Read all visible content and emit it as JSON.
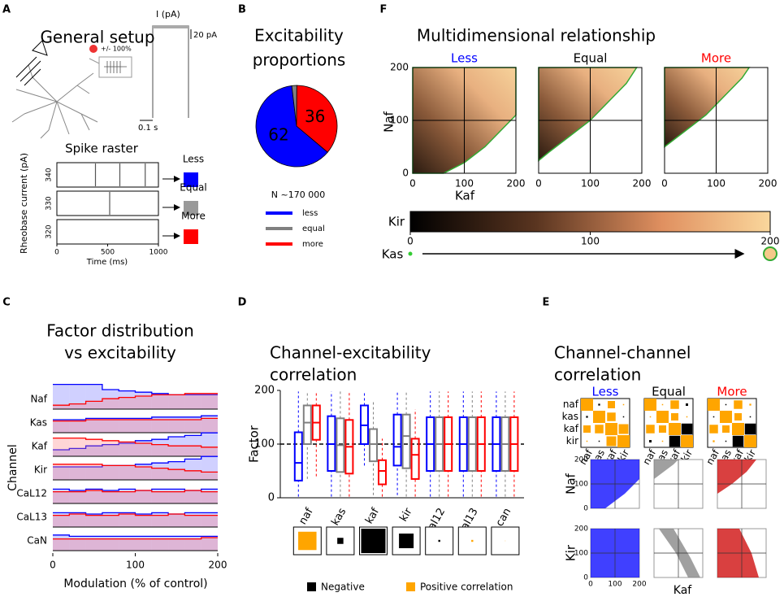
{
  "panel_letters": [
    "A",
    "B",
    "C",
    "D",
    "E",
    "F"
  ],
  "panel_a": {
    "title": "General setup",
    "stim_label": "+/- 100%",
    "current_label": "I (pA)",
    "scale_current": "20 pA",
    "scale_time": "0.1 s"
  },
  "chart_data": [
    {
      "type": "raster",
      "title": "Spike raster",
      "xlabel": "Time (ms)",
      "ylabel": "Rheobase current (pA)",
      "categories": [
        "340",
        "330",
        "320"
      ],
      "spikes": [
        [
          380,
          620,
          870
        ],
        [
          520
        ],
        []
      ],
      "xlim": [
        0,
        1000
      ],
      "xticks": [
        0,
        500,
        1000
      ],
      "outcomes": [
        {
          "name": "Less",
          "color": "#0000ff"
        },
        {
          "name": "Equal",
          "color": "#999999"
        },
        {
          "name": "More",
          "color": "#ff0000"
        }
      ]
    },
    {
      "type": "pie",
      "title": [
        "Excitability",
        "proportions"
      ],
      "categories": [
        "less",
        "equal",
        "more"
      ],
      "values": [
        62,
        2,
        36
      ],
      "value_labels": [
        "62",
        null,
        "36"
      ],
      "colors": [
        "#0000ff",
        "#808080",
        "#ff0000"
      ],
      "note": "N ~170 000"
    },
    {
      "type": "step",
      "title": [
        "Factor distribution",
        "vs excitability"
      ],
      "xlabel": "Modulation (% of control)",
      "ylabel": "Channel",
      "channels": [
        "Naf",
        "Kas",
        "Kaf",
        "Kir",
        "CaL12",
        "CaL13",
        "CaN"
      ],
      "bins": [
        0,
        20,
        40,
        60,
        80,
        100,
        120,
        140,
        160,
        180,
        200
      ],
      "xlim": [
        0,
        200
      ],
      "xticks": [
        0,
        100,
        200
      ],
      "ylim": [
        0,
        2
      ],
      "series": [
        {
          "name": "less",
          "color": "#0000ff",
          "values": [
            [
              1.9,
              1.9,
              1.9,
              1.5,
              1.4,
              1.3,
              1.2,
              1.1,
              1.1,
              1.1
            ],
            [
              1.0,
              1.0,
              1.1,
              1.1,
              1.1,
              1.1,
              1.2,
              1.2,
              1.2,
              1.3
            ],
            [
              0.5,
              0.6,
              0.8,
              0.9,
              1.0,
              1.2,
              1.3,
              1.5,
              1.6,
              1.8
            ],
            [
              1.0,
              1.0,
              1.0,
              1.1,
              1.1,
              1.2,
              1.3,
              1.4,
              1.6,
              1.8
            ],
            [
              1.1,
              1.0,
              1.1,
              1.0,
              1.1,
              1.0,
              1.1,
              1.1,
              1.0,
              1.1
            ],
            [
              1.1,
              1.1,
              1.0,
              1.1,
              1.1,
              1.0,
              1.1,
              1.0,
              1.1,
              1.1
            ],
            [
              1.2,
              1.1,
              1.1,
              1.1,
              1.1,
              1.1,
              1.1,
              1.1,
              1.1,
              1.1
            ]
          ]
        },
        {
          "name": "more",
          "color": "#ff0000",
          "values": [
            [
              0.3,
              0.4,
              0.6,
              0.8,
              0.9,
              1.0,
              1.1,
              1.1,
              1.2,
              1.2
            ],
            [
              0.9,
              0.9,
              1.0,
              1.0,
              1.0,
              1.0,
              1.0,
              1.0,
              1.0,
              1.1
            ],
            [
              1.4,
              1.4,
              1.3,
              1.2,
              1.1,
              1.0,
              0.9,
              0.8,
              0.8,
              0.7
            ],
            [
              1.2,
              1.2,
              1.2,
              1.1,
              1.1,
              1.0,
              0.9,
              0.8,
              0.7,
              0.6
            ],
            [
              0.9,
              0.9,
              1.0,
              0.9,
              0.9,
              1.0,
              0.9,
              0.9,
              1.0,
              0.9
            ],
            [
              0.9,
              1.0,
              0.9,
              0.9,
              1.0,
              0.9,
              0.9,
              1.0,
              0.9,
              0.9
            ],
            [
              0.9,
              0.9,
              0.9,
              0.9,
              0.9,
              0.9,
              0.9,
              0.9,
              0.9,
              1.0
            ]
          ]
        }
      ]
    },
    {
      "type": "box",
      "title": [
        "Channel-excitability",
        "correlation"
      ],
      "ylabel": "Factor",
      "categories": [
        "naf",
        "kas",
        "kaf",
        "kir",
        "cal12",
        "cal13",
        "can"
      ],
      "ylim": [
        0,
        200
      ],
      "yticks": [
        0,
        100,
        200
      ],
      "hline": 100,
      "series": [
        {
          "name": "less",
          "color": "#0000ff",
          "values": [
            [
              2,
              32,
              65,
              122,
              198
            ],
            [
              2,
              50,
              100,
              152,
              198
            ],
            [
              60,
              100,
              135,
              172,
              198
            ],
            [
              5,
              60,
              95,
              155,
              198
            ],
            [
              2,
              50,
              100,
              150,
              198
            ],
            [
              2,
              50,
              100,
              150,
              198
            ],
            [
              2,
              50,
              100,
              150,
              198
            ]
          ]
        },
        {
          "name": "equal",
          "color": "#808080",
          "values": [
            [
              35,
              100,
              140,
              172,
              198
            ],
            [
              2,
              48,
              98,
              148,
              198
            ],
            [
              5,
              68,
              100,
              128,
              180
            ],
            [
              2,
              55,
              115,
              155,
              198
            ],
            [
              2,
              50,
              100,
              150,
              198
            ],
            [
              2,
              50,
              100,
              150,
              198
            ],
            [
              2,
              50,
              100,
              150,
              198
            ]
          ]
        },
        {
          "name": "more",
          "color": "#ff0000",
          "values": [
            [
              40,
              108,
              140,
              172,
              198
            ],
            [
              2,
              45,
              95,
              145,
              198
            ],
            [
              2,
              25,
              50,
              70,
              110
            ],
            [
              2,
              35,
              80,
              110,
              165
            ],
            [
              2,
              50,
              100,
              150,
              198
            ],
            [
              2,
              50,
              100,
              150,
              198
            ],
            [
              2,
              50,
              100,
              150,
              198
            ]
          ]
        }
      ],
      "correlation": {
        "values": [
          0.75,
          -0.25,
          -1,
          -0.6,
          -0.08,
          0.08,
          0.02
        ],
        "positive_color": "#ffa500",
        "negative_color": "#000000",
        "legend": [
          "Negative",
          "Positive correlation"
        ]
      }
    },
    {
      "type": "matrix",
      "title": [
        "Channel-channel",
        "correlation"
      ],
      "labels": [
        "naf",
        "kas",
        "kaf",
        "kir"
      ],
      "positive_color": "#ffa500",
      "negative_color": "#000000",
      "panels": [
        {
          "name": "Less",
          "color": "#0000ff",
          "values": [
            [
              1,
              -0.15,
              0.6,
              0.1
            ],
            [
              -0.15,
              1,
              0.7,
              -0.1
            ],
            [
              0.6,
              0.7,
              1,
              0.8
            ],
            [
              0.1,
              -0.1,
              0.8,
              1
            ]
          ]
        },
        {
          "name": "Equal",
          "color": "#000000",
          "values": [
            [
              1,
              0.1,
              0.7,
              -0.2
            ],
            [
              0.1,
              1,
              0.6,
              0.1
            ],
            [
              0.7,
              0.6,
              1,
              -0.9
            ],
            [
              -0.2,
              0.1,
              -0.9,
              1
            ]
          ]
        },
        {
          "name": "More",
          "color": "#ff0000",
          "values": [
            [
              1,
              -0.1,
              0.7,
              0.15
            ],
            [
              -0.1,
              1,
              0.6,
              -0.1
            ],
            [
              0.7,
              0.6,
              1,
              -0.9
            ],
            [
              0.15,
              -0.1,
              -0.9,
              1
            ]
          ]
        }
      ],
      "scatter": {
        "xlabel": "Kaf",
        "ylabels": [
          "Naf",
          "Kir"
        ],
        "colors": [
          "#0000ff",
          "#808080",
          "#cc0000"
        ],
        "xlim": [
          0,
          200
        ],
        "ylim": [
          0,
          200
        ],
        "xticks": [
          0,
          100,
          200
        ],
        "yticks": [
          0,
          100,
          200
        ]
      }
    },
    {
      "type": "bubble",
      "title": "Multidimensional relationship",
      "panels": [
        {
          "name": "Less",
          "color": "#0000ff"
        },
        {
          "name": "Equal",
          "color": "#000000"
        },
        {
          "name": "More",
          "color": "#ff0000"
        }
      ],
      "xlabel": "Kaf",
      "ylabel": "Naf",
      "xlim": [
        0,
        200
      ],
      "ylim": [
        0,
        200
      ],
      "xticks": [
        0,
        100,
        200
      ],
      "yticks": [
        0,
        100,
        200
      ],
      "colorbar": {
        "label": "Kir",
        "lim": [
          0,
          200
        ],
        "ticks": [
          0,
          100,
          200
        ]
      },
      "size_label": "Kas"
    }
  ]
}
